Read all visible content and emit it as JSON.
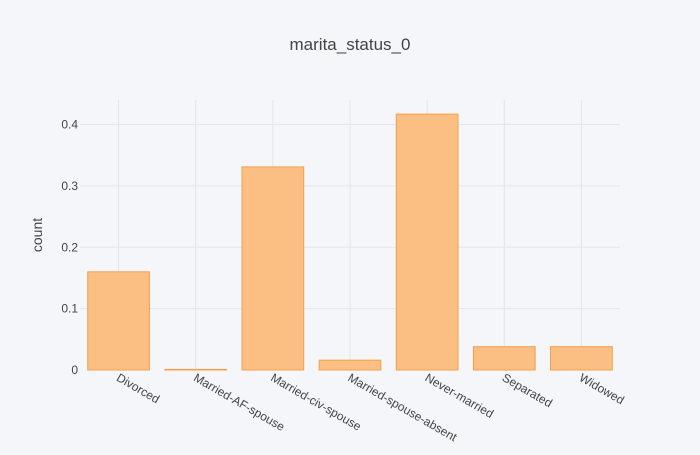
{
  "chart_data": {
    "type": "bar",
    "title": "marita_status_0",
    "xlabel": "",
    "ylabel": "count",
    "categories": [
      "Divorced",
      "Married-AF-spouse",
      "Married-civ-spouse",
      "Married-spouse-absent",
      "Never-married",
      "Separated",
      "Widowed"
    ],
    "values": [
      0.16,
      0.001,
      0.331,
      0.016,
      0.417,
      0.038,
      0.038
    ],
    "ylim": [
      0,
      0.44
    ],
    "yticks": [
      0,
      0.1,
      0.2,
      0.3,
      0.4
    ],
    "ytick_labels": [
      "0",
      "0.1",
      "0.2",
      "0.3",
      "0.4"
    ],
    "grid": true,
    "bar_fill": "#fbbf84",
    "bar_edge": "#f4a04a",
    "background": "#f5f6f9",
    "grid_color": "#e3e5ea"
  }
}
